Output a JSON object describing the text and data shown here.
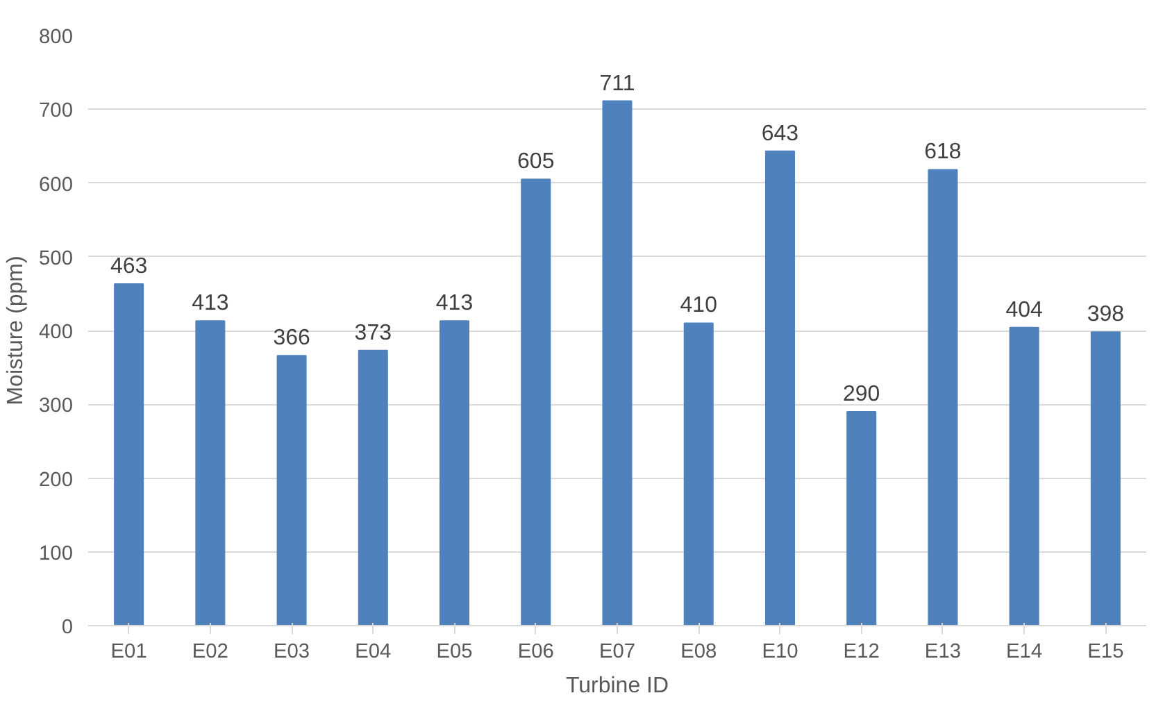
{
  "chart_data": {
    "type": "bar",
    "xlabel": "Turbine ID",
    "ylabel": "Moisture (ppm)",
    "categories": [
      "E01",
      "E02",
      "E03",
      "E04",
      "E05",
      "E06",
      "E07",
      "E08",
      "E10",
      "E12",
      "E13",
      "E14",
      "E15"
    ],
    "values": [
      463,
      413,
      366,
      373,
      413,
      605,
      711,
      410,
      643,
      290,
      618,
      404,
      398
    ],
    "color": "#4f81bd",
    "ylim": [
      0,
      800
    ],
    "yticks": [
      0,
      100,
      200,
      300,
      400,
      500,
      600,
      700,
      800
    ],
    "grid": "y",
    "data_labels": true
  }
}
